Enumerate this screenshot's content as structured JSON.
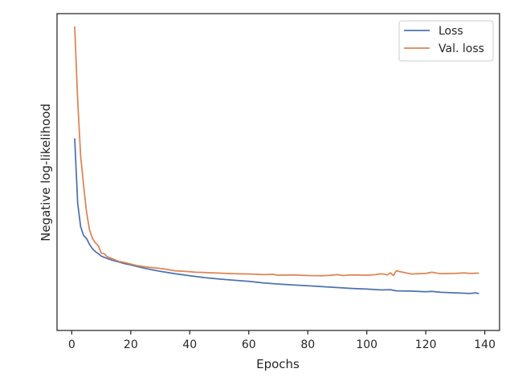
{
  "chart_data": {
    "type": "line",
    "title": "",
    "xlabel": "Epochs",
    "ylabel": "Negative log-likelihood",
    "xlim": [
      -5,
      145
    ],
    "ylim": [
      0,
      100
    ],
    "xticks": [
      0,
      20,
      40,
      60,
      80,
      100,
      120,
      140
    ],
    "yticks_shown": false,
    "grid": false,
    "legend_position": "top-right",
    "series": [
      {
        "name": "Loss",
        "color": "#4c72b0",
        "x": [
          1,
          2,
          3,
          4,
          5,
          6,
          7,
          8,
          9,
          10,
          12,
          14,
          16,
          18,
          20,
          22,
          25,
          28,
          30,
          35,
          40,
          45,
          50,
          55,
          60,
          65,
          70,
          75,
          80,
          85,
          90,
          95,
          100,
          105,
          108,
          110,
          115,
          120,
          122,
          125,
          130,
          135,
          137,
          138
        ],
        "values": [
          62.0,
          40.0,
          32.0,
          29.0,
          28.0,
          26.0,
          24.5,
          23.5,
          22.8,
          22.0,
          21.2,
          20.5,
          20.0,
          19.4,
          19.0,
          18.5,
          17.8,
          17.2,
          16.8,
          16.0,
          15.3,
          14.7,
          14.2,
          13.8,
          13.4,
          12.9,
          12.5,
          12.2,
          11.9,
          11.6,
          11.3,
          11.0,
          10.8,
          10.5,
          10.6,
          10.2,
          10.1,
          9.9,
          10.0,
          9.7,
          9.5,
          9.3,
          9.5,
          9.2
        ]
      },
      {
        "name": "Val. loss",
        "color": "#dd8452",
        "x": [
          1,
          2,
          3,
          4,
          5,
          6,
          7,
          8,
          9,
          10,
          11,
          12,
          14,
          16,
          18,
          20,
          22,
          25,
          28,
          30,
          32,
          35,
          38,
          40,
          42,
          45,
          50,
          55,
          60,
          65,
          68,
          70,
          75,
          80,
          85,
          88,
          90,
          92,
          95,
          100,
          103,
          105,
          107,
          108,
          109,
          110,
          115,
          120,
          122,
          125,
          130,
          133,
          135,
          138
        ],
        "values": [
          100.0,
          75.0,
          56.0,
          46.0,
          37.0,
          31.0,
          28.0,
          26.5,
          25.5,
          23.0,
          22.8,
          21.8,
          21.0,
          20.2,
          19.8,
          19.3,
          18.8,
          18.3,
          18.0,
          17.8,
          17.5,
          17.0,
          16.8,
          16.7,
          16.5,
          16.4,
          16.2,
          16.0,
          15.9,
          15.7,
          15.8,
          15.5,
          15.6,
          15.4,
          15.3,
          15.5,
          15.7,
          15.4,
          15.6,
          15.5,
          15.7,
          16.0,
          15.6,
          16.3,
          15.4,
          17.0,
          15.9,
          16.1,
          16.5,
          16.0,
          16.1,
          16.3,
          16.1,
          16.2
        ]
      }
    ]
  }
}
